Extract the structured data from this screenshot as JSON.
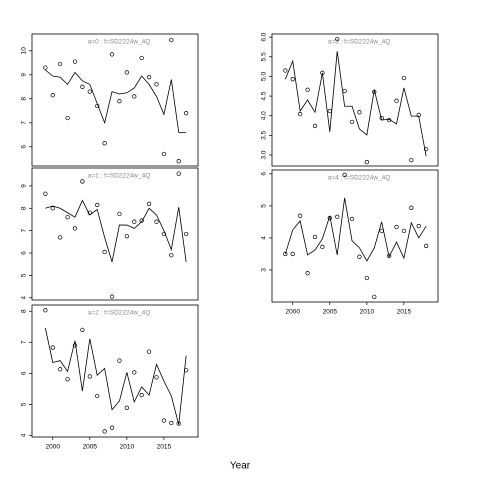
{
  "x_label": "Year",
  "chart_data": [
    {
      "type": "line",
      "title": "a=0 : f=SD2224w_4Q",
      "x": [
        1999,
        2000,
        2001,
        2002,
        2003,
        2004,
        2005,
        2006,
        2007,
        2008,
        2009,
        2010,
        2011,
        2012,
        2013,
        2014,
        2015,
        2016,
        2017,
        2018
      ],
      "series": [
        {
          "style": "points",
          "color": "#000000",
          "values": [
            9.3,
            8.15,
            9.45,
            7.2,
            9.55,
            8.5,
            8.3,
            7.7,
            6.15,
            9.85,
            7.9,
            9.1,
            8.1,
            9.7,
            8.9,
            8.6,
            5.7,
            10.45,
            5.4,
            7.4
          ]
        },
        {
          "style": "line",
          "color": "#000000",
          "values": [
            9.2,
            8.95,
            8.9,
            8.6,
            9.1,
            8.75,
            8.6,
            7.8,
            7.0,
            8.3,
            8.2,
            8.25,
            8.45,
            8.95,
            8.6,
            8.1,
            7.35,
            8.8,
            6.6,
            6.6
          ]
        }
      ],
      "xlim": [
        1997.2,
        2019.6
      ],
      "ylim": [
        5.2,
        10.7
      ],
      "yticks": [
        6,
        7,
        8,
        9,
        10
      ]
    },
    {
      "type": "line",
      "title": "a=1 : f=SD2224w_4Q",
      "x": [
        1999,
        2000,
        2001,
        2002,
        2003,
        2004,
        2005,
        2006,
        2007,
        2008,
        2009,
        2010,
        2011,
        2012,
        2013,
        2014,
        2015,
        2016,
        2017,
        2018
      ],
      "series": [
        {
          "style": "points",
          "color": "#000000",
          "values": [
            8.65,
            8.0,
            6.7,
            7.6,
            7.1,
            9.2,
            7.8,
            8.15,
            6.05,
            4.05,
            7.75,
            6.75,
            7.4,
            7.45,
            8.2,
            7.4,
            6.85,
            5.9,
            9.55,
            6.85
          ]
        },
        {
          "style": "line",
          "color": "#000000",
          "values": [
            8.0,
            8.1,
            8.0,
            7.8,
            7.6,
            8.35,
            7.7,
            7.95,
            6.7,
            5.6,
            7.25,
            7.25,
            7.1,
            7.4,
            8.0,
            7.7,
            7.0,
            6.15,
            8.05,
            5.6
          ]
        }
      ],
      "xlim": [
        1997.2,
        2019.6
      ],
      "ylim": [
        3.9,
        9.8
      ],
      "yticks": [
        4,
        5,
        6,
        7,
        8,
        9
      ]
    },
    {
      "type": "line",
      "title": "a=2 : f=SD2224w_4Q",
      "x": [
        1999,
        2000,
        2001,
        2002,
        2003,
        2004,
        2005,
        2006,
        2007,
        2008,
        2009,
        2010,
        2011,
        2012,
        2013,
        2014,
        2015,
        2016,
        2017,
        2018
      ],
      "series": [
        {
          "style": "points",
          "color": "#000000",
          "values": [
            8.03,
            6.83,
            6.13,
            5.81,
            6.9,
            7.4,
            5.9,
            5.27,
            4.13,
            4.25,
            6.41,
            4.89,
            6.03,
            5.3,
            6.7,
            5.87,
            4.48,
            4.4,
            4.38,
            6.1
          ]
        },
        {
          "style": "line",
          "color": "#000000",
          "values": [
            7.46,
            6.35,
            6.41,
            6.06,
            7.05,
            5.43,
            7.11,
            5.94,
            6.16,
            4.83,
            5.11,
            6.03,
            5.08,
            5.56,
            5.3,
            6.29,
            5.75,
            5.27,
            4.35,
            6.57
          ]
        }
      ],
      "xlim": [
        1997.2,
        2019.6
      ],
      "ylim": [
        3.95,
        8.2
      ],
      "yticks": [
        4,
        5,
        6,
        7,
        8
      ],
      "xticks": [
        2000,
        2005,
        2010,
        2015
      ]
    },
    {
      "type": "line",
      "title": "a=3 : f=SD2224w_4Q",
      "x": [
        1999,
        2000,
        2001,
        2002,
        2003,
        2004,
        2005,
        2006,
        2007,
        2008,
        2009,
        2010,
        2011,
        2012,
        2013,
        2014,
        2015,
        2016,
        2017,
        2018
      ],
      "series": [
        {
          "style": "points",
          "color": "#000000",
          "values": [
            5.15,
            4.93,
            4.04,
            4.66,
            3.74,
            5.09,
            4.12,
            5.95,
            4.63,
            3.84,
            4.09,
            2.82,
            4.61,
            3.94,
            3.89,
            4.38,
            4.96,
            2.87,
            4.02,
            3.15
          ]
        },
        {
          "style": "line",
          "color": "#000000",
          "values": [
            4.93,
            5.39,
            4.12,
            4.4,
            4.09,
            5.09,
            3.59,
            5.64,
            4.24,
            4.24,
            3.66,
            3.51,
            4.66,
            3.89,
            3.91,
            3.79,
            4.71,
            3.99,
            3.99,
            2.97
          ]
        }
      ],
      "xlim": [
        1997.2,
        2019.6
      ],
      "ylim": [
        2.72,
        6.08
      ],
      "yticks": [
        {
          "value": 3,
          "label": "3.0"
        },
        3.5,
        {
          "value": 4,
          "label": "4.0"
        },
        4.5,
        {
          "value": 5,
          "label": "5.0"
        },
        5.5,
        {
          "value": 6,
          "label": "6.0"
        }
      ]
    },
    {
      "type": "line",
      "title": "a=4 : f=SD2224w_4Q",
      "x": [
        1999,
        2000,
        2001,
        2002,
        2003,
        2004,
        2005,
        2006,
        2007,
        2008,
        2009,
        2010,
        2011,
        2012,
        2013,
        2014,
        2015,
        2016,
        2017,
        2018
      ],
      "series": [
        {
          "style": "points",
          "color": "#000000",
          "values": [
            3.5,
            3.5,
            4.69,
            2.9,
            4.03,
            3.72,
            4.62,
            4.66,
            5.97,
            4.59,
            3.41,
            2.75,
            2.16,
            4.22,
            3.44,
            4.34,
            4.22,
            4.94,
            4.37,
            3.75
          ]
        },
        {
          "style": "line",
          "color": "#000000",
          "values": [
            3.5,
            4.25,
            4.53,
            3.47,
            3.62,
            3.97,
            4.69,
            3.47,
            5.25,
            3.91,
            3.69,
            3.28,
            3.69,
            4.5,
            3.41,
            3.87,
            3.37,
            4.47,
            4.0,
            4.37
          ]
        }
      ],
      "xlim": [
        1997.2,
        2019.6
      ],
      "ylim": [
        2.0,
        6.12
      ],
      "yticks": [
        3,
        4,
        5,
        6
      ],
      "xticks": [
        2000,
        2005,
        2010,
        2015
      ]
    }
  ]
}
